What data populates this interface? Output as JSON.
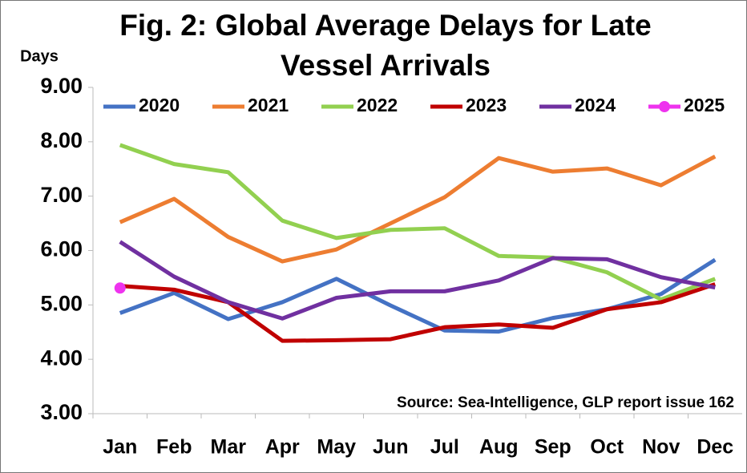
{
  "chart_data": {
    "type": "line",
    "title": "Fig. 2: Global Average Delays for Late Vessel Arrivals",
    "y_label": "Days",
    "annotation": "Source: Sea-Intelligence, GLP report issue 162",
    "categories": [
      "Jan",
      "Feb",
      "Mar",
      "Apr",
      "May",
      "Jun",
      "Jul",
      "Aug",
      "Sep",
      "Oct",
      "Nov",
      "Dec"
    ],
    "series": [
      {
        "name": "2020",
        "color": "#4472c4",
        "values": [
          4.85,
          5.22,
          4.74,
          5.05,
          5.48,
          4.99,
          4.53,
          4.51,
          4.76,
          4.92,
          5.2,
          5.83
        ]
      },
      {
        "name": "2021",
        "color": "#ed7d31",
        "values": [
          6.52,
          6.95,
          6.25,
          5.8,
          6.02,
          6.5,
          6.98,
          7.7,
          7.45,
          7.51,
          7.2,
          7.73
        ]
      },
      {
        "name": "2022",
        "color": "#92d050",
        "values": [
          7.94,
          7.59,
          7.44,
          6.55,
          6.23,
          6.38,
          6.41,
          5.9,
          5.87,
          5.6,
          5.1,
          5.48
        ]
      },
      {
        "name": "2023",
        "color": "#c00000",
        "values": [
          5.35,
          5.28,
          5.05,
          4.34,
          4.35,
          4.37,
          4.59,
          4.64,
          4.58,
          4.92,
          5.05,
          5.38
        ]
      },
      {
        "name": "2024",
        "color": "#7030a0",
        "values": [
          6.16,
          5.52,
          5.05,
          4.75,
          5.13,
          5.25,
          5.25,
          5.45,
          5.86,
          5.84,
          5.51,
          5.32
        ]
      },
      {
        "name": "2025",
        "color": "#ee33ee",
        "marker": true,
        "values": [
          5.31,
          null,
          null,
          null,
          null,
          null,
          null,
          null,
          null,
          null,
          null,
          null
        ]
      }
    ],
    "ylim": [
      3,
      9
    ],
    "yticks": [
      {
        "value": 3,
        "label": "3.00"
      },
      {
        "value": 4,
        "label": "4.00"
      },
      {
        "value": 5,
        "label": "5.00"
      },
      {
        "value": 6,
        "label": "6.00"
      },
      {
        "value": 7,
        "label": "7.00"
      },
      {
        "value": 8,
        "label": "8.00"
      },
      {
        "value": 9,
        "label": "9.00"
      }
    ],
    "grid": false,
    "legend": "top"
  }
}
